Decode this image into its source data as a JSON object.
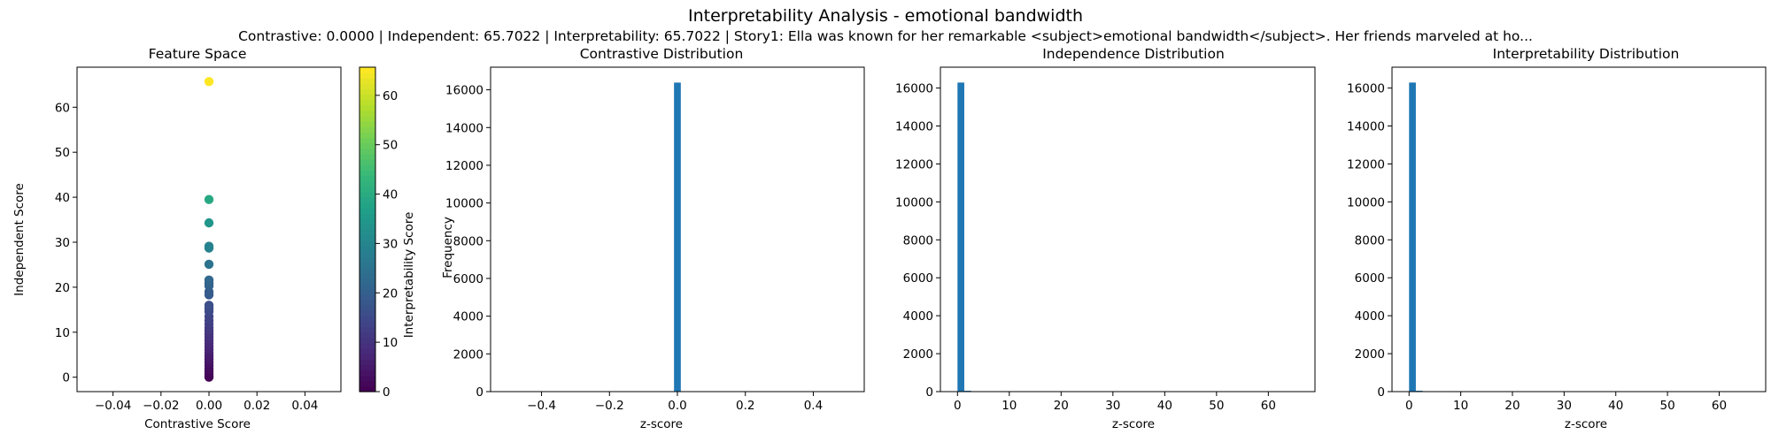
{
  "figure": {
    "title": "Interpretability Analysis - emotional bandwidth",
    "subtitle": "Contrastive: 0.0000 | Independent: 65.7022 | Interpretability: 65.7022 | Story1: Ella was known for her remarkable <subject>emotional bandwidth</subject>. Her friends marveled at ho..."
  },
  "chart_data": [
    {
      "type": "scatter",
      "title": "Feature Space",
      "xlabel": "Contrastive Score",
      "ylabel": "Independent Score",
      "xlim": [
        -0.055,
        0.055
      ],
      "ylim": [
        -3.2,
        68.9
      ],
      "xticks": [
        -0.04,
        -0.02,
        0.0,
        0.02,
        0.04
      ],
      "xtick_labels": [
        "−0.04",
        "−0.02",
        "0.00",
        "0.02",
        "0.04"
      ],
      "yticks": [
        0,
        10,
        20,
        30,
        40,
        50,
        60
      ],
      "colormap": "viridis",
      "colorbar": {
        "label": "Interpretability Score",
        "range": [
          0,
          65.7
        ],
        "ticks": [
          0,
          10,
          20,
          30,
          40,
          50,
          60
        ]
      },
      "points": [
        {
          "x": 0,
          "y": 65.7
        },
        {
          "x": 0,
          "y": 39.5
        },
        {
          "x": 0,
          "y": 34.3
        },
        {
          "x": 0,
          "y": 29.1
        },
        {
          "x": 0,
          "y": 28.7
        },
        {
          "x": 0,
          "y": 25.1
        },
        {
          "x": 0,
          "y": 21.6
        },
        {
          "x": 0,
          "y": 20.9
        },
        {
          "x": 0,
          "y": 20.3
        },
        {
          "x": 0,
          "y": 19.0
        },
        {
          "x": 0,
          "y": 18.3
        },
        {
          "x": 0,
          "y": 16.0
        },
        {
          "x": 0,
          "y": 15.3
        },
        {
          "x": 0,
          "y": 14.6
        },
        {
          "x": 0,
          "y": 13.5
        },
        {
          "x": 0,
          "y": 12.6
        },
        {
          "x": 0,
          "y": 11.8
        },
        {
          "x": 0,
          "y": 11.0
        },
        {
          "x": 0,
          "y": 10.3
        },
        {
          "x": 0,
          "y": 9.6
        },
        {
          "x": 0,
          "y": 8.9
        },
        {
          "x": 0,
          "y": 8.2
        },
        {
          "x": 0,
          "y": 7.5
        },
        {
          "x": 0,
          "y": 6.8
        },
        {
          "x": 0,
          "y": 6.1
        },
        {
          "x": 0,
          "y": 5.4
        },
        {
          "x": 0,
          "y": 4.7
        },
        {
          "x": 0,
          "y": 4.0
        },
        {
          "x": 0,
          "y": 3.3
        },
        {
          "x": 0,
          "y": 2.6
        },
        {
          "x": 0,
          "y": 1.9
        },
        {
          "x": 0,
          "y": 1.3
        },
        {
          "x": 0,
          "y": 0.7
        },
        {
          "x": 0,
          "y": 0.3
        },
        {
          "x": 0,
          "y": 0.0
        }
      ]
    },
    {
      "type": "bar",
      "title": "Contrastive Distribution",
      "xlabel": "z-score",
      "ylabel": "Frequency",
      "xlim": [
        -0.55,
        0.55
      ],
      "ylim": [
        0,
        17200
      ],
      "xticks": [
        -0.4,
        -0.2,
        0.0,
        0.2,
        0.4
      ],
      "xtick_labels": [
        "−0.4",
        "−0.2",
        "0.0",
        "0.2",
        "0.4"
      ],
      "yticks": [
        0,
        2000,
        4000,
        6000,
        8000,
        10000,
        12000,
        14000,
        16000
      ],
      "color": "#1f77b4",
      "bins": [
        {
          "start": -0.01,
          "end": 0.01,
          "count": 16384
        }
      ]
    },
    {
      "type": "bar",
      "title": "Independence Distribution",
      "xlabel": "z-score",
      "ylabel": "",
      "xlim": [
        -3.3,
        69.0
      ],
      "ylim": [
        0,
        17100
      ],
      "xticks": [
        0,
        10,
        20,
        30,
        40,
        50,
        60
      ],
      "yticks": [
        0,
        2000,
        4000,
        6000,
        8000,
        10000,
        12000,
        14000,
        16000
      ],
      "color": "#1f77b4",
      "bins": [
        {
          "start": 0.0,
          "end": 1.31,
          "count": 16290
        },
        {
          "start": 1.31,
          "end": 2.63,
          "count": 45
        },
        {
          "start": 2.63,
          "end": 3.94,
          "count": 20
        },
        {
          "start": 3.94,
          "end": 5.26,
          "count": 10
        },
        {
          "start": 5.26,
          "end": 6.57,
          "count": 5
        },
        {
          "start": 7.88,
          "end": 9.2,
          "count": 4
        },
        {
          "start": 9.2,
          "end": 10.51,
          "count": 3
        }
      ]
    },
    {
      "type": "bar",
      "title": "Interpretability Distribution",
      "xlabel": "z-score",
      "ylabel": "",
      "xlim": [
        -3.3,
        69.0
      ],
      "ylim": [
        0,
        17100
      ],
      "xticks": [
        0,
        10,
        20,
        30,
        40,
        50,
        60
      ],
      "yticks": [
        0,
        2000,
        4000,
        6000,
        8000,
        10000,
        12000,
        14000,
        16000
      ],
      "color": "#1f77b4",
      "bins": [
        {
          "start": 0.0,
          "end": 1.31,
          "count": 16290
        },
        {
          "start": 1.31,
          "end": 2.63,
          "count": 45
        },
        {
          "start": 2.63,
          "end": 3.94,
          "count": 20
        },
        {
          "start": 3.94,
          "end": 5.26,
          "count": 10
        },
        {
          "start": 5.26,
          "end": 6.57,
          "count": 5
        },
        {
          "start": 7.88,
          "end": 9.2,
          "count": 4
        },
        {
          "start": 9.2,
          "end": 10.51,
          "count": 3
        }
      ]
    }
  ]
}
